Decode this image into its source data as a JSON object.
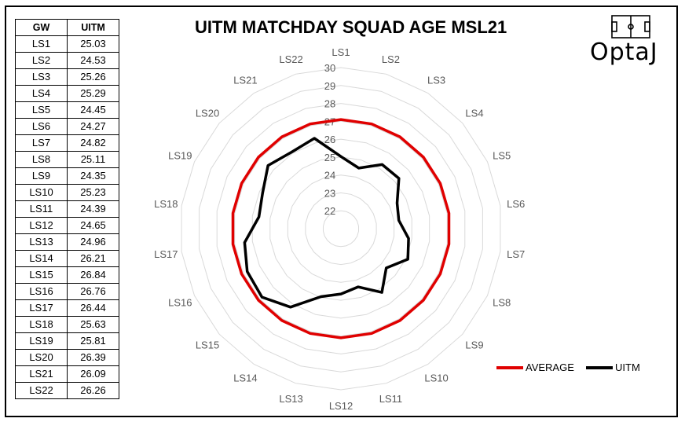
{
  "chart_data": {
    "type": "radar",
    "title": "UITM MATCHDAY SQUAD AGE MSL21",
    "categories": [
      "LS1",
      "LS2",
      "LS3",
      "LS4",
      "LS5",
      "LS6",
      "LS7",
      "LS8",
      "LS9",
      "LS10",
      "LS11",
      "LS12",
      "LS13",
      "LS14",
      "LS15",
      "LS16",
      "LS17",
      "LS18",
      "LS19",
      "LS20",
      "LS21",
      "LS22"
    ],
    "radial_ticks": [
      "22",
      "23",
      "24",
      "25",
      "26",
      "27",
      "28",
      "29",
      "30"
    ],
    "rlim": [
      21,
      30
    ],
    "legend_position": "bottom-right",
    "series": [
      {
        "name": "AVERAGE",
        "color": "#e00000",
        "values": [
          27.1,
          27.1,
          27.1,
          27.1,
          27.1,
          27.1,
          27.1,
          27.1,
          27.1,
          27.1,
          27.1,
          27.1,
          27.1,
          27.1,
          27.1,
          27.1,
          27.1,
          27.1,
          27.1,
          27.1,
          27.1,
          27.1
        ]
      },
      {
        "name": "UITM",
        "color": "#000000",
        "values": [
          25.03,
          24.53,
          25.26,
          25.29,
          24.45,
          24.27,
          24.82,
          25.11,
          24.35,
          25.23,
          24.39,
          24.65,
          24.96,
          26.21,
          26.84,
          26.76,
          26.44,
          25.63,
          25.81,
          26.39,
          26.09,
          26.26
        ]
      }
    ]
  },
  "table": {
    "headers": [
      "GW",
      "UITM"
    ],
    "rows": [
      [
        "LS1",
        "25.03"
      ],
      [
        "LS2",
        "24.53"
      ],
      [
        "LS3",
        "25.26"
      ],
      [
        "LS4",
        "25.29"
      ],
      [
        "LS5",
        "24.45"
      ],
      [
        "LS6",
        "24.27"
      ],
      [
        "LS7",
        "24.82"
      ],
      [
        "LS8",
        "25.11"
      ],
      [
        "LS9",
        "24.35"
      ],
      [
        "LS10",
        "25.23"
      ],
      [
        "LS11",
        "24.39"
      ],
      [
        "LS12",
        "24.65"
      ],
      [
        "LS13",
        "24.96"
      ],
      [
        "LS14",
        "26.21"
      ],
      [
        "LS15",
        "26.84"
      ],
      [
        "LS16",
        "26.76"
      ],
      [
        "LS17",
        "26.44"
      ],
      [
        "LS18",
        "25.63"
      ],
      [
        "LS19",
        "25.81"
      ],
      [
        "LS20",
        "26.39"
      ],
      [
        "LS21",
        "26.09"
      ],
      [
        "LS22",
        "26.26"
      ]
    ]
  },
  "logo": {
    "text": "OptaJ",
    "icon": "football-pitch-icon"
  }
}
